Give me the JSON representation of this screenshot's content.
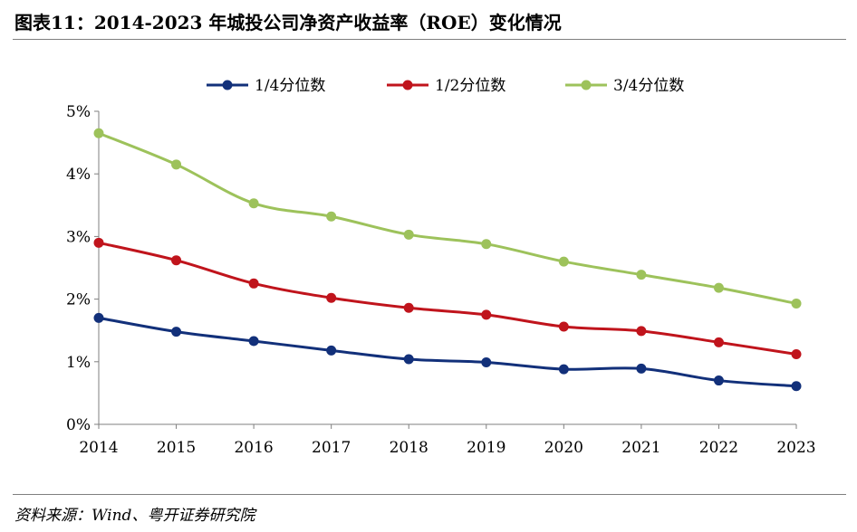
{
  "header": {
    "title": "图表11：2014-2023 年城投公司净资产收益率（ROE）变化情况"
  },
  "footer": {
    "source": "资料来源：Wind、粤开证券研究院"
  },
  "chart_data": {
    "type": "line",
    "categories": [
      "2014",
      "2015",
      "2016",
      "2017",
      "2018",
      "2019",
      "2020",
      "2021",
      "2022",
      "2023"
    ],
    "series": [
      {
        "name": "1/4分位数",
        "color": "#12307a",
        "values": [
          1.7,
          1.48,
          1.33,
          1.18,
          1.04,
          0.99,
          0.88,
          0.89,
          0.7,
          0.61
        ]
      },
      {
        "name": "1/2分位数",
        "color": "#c0141c",
        "values": [
          2.9,
          2.62,
          2.25,
          2.02,
          1.86,
          1.75,
          1.56,
          1.49,
          1.31,
          1.12
        ]
      },
      {
        "name": "3/4分位数",
        "color": "#9dc25b",
        "values": [
          4.65,
          4.15,
          3.53,
          3.32,
          3.03,
          2.88,
          2.6,
          2.39,
          2.18,
          1.93
        ]
      }
    ],
    "ylim": [
      0,
      5
    ],
    "yticks": [
      0,
      1,
      2,
      3,
      4,
      5
    ],
    "ytick_labels": [
      "0%",
      "1%",
      "2%",
      "3%",
      "4%",
      "5%"
    ],
    "y_unit": "%",
    "grid": false,
    "legend": "top"
  }
}
